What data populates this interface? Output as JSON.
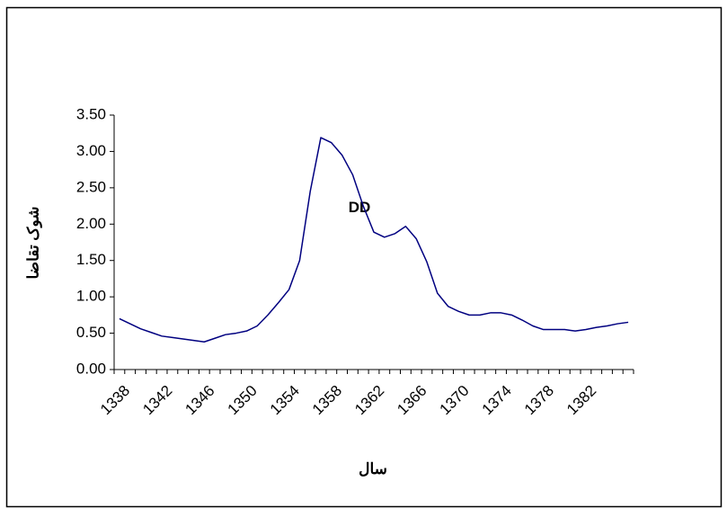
{
  "chart_data": {
    "type": "line",
    "y_label": "شوک تقاضا",
    "x_label": "سال",
    "annotation": "DD",
    "categories": [
      "1338",
      null,
      null,
      null,
      "1342",
      null,
      null,
      null,
      "1346",
      null,
      null,
      null,
      "1350",
      null,
      null,
      null,
      "1354",
      null,
      null,
      null,
      "1358",
      null,
      null,
      null,
      "1362",
      null,
      null,
      null,
      "1366",
      null,
      null,
      null,
      "1370",
      null,
      null,
      null,
      "1374",
      null,
      null,
      null,
      "1378",
      null,
      null,
      null,
      "1382",
      null,
      null,
      null,
      null
    ],
    "series": [
      {
        "color": "#000080",
        "values": [
          0.7,
          0.63,
          0.56,
          0.51,
          0.46,
          0.44,
          0.42,
          0.4,
          0.38,
          0.43,
          0.48,
          0.5,
          0.53,
          0.6,
          0.75,
          0.92,
          1.1,
          1.5,
          2.45,
          3.19,
          3.12,
          2.95,
          2.68,
          2.25,
          1.89,
          1.82,
          1.87,
          1.97,
          1.8,
          1.48,
          1.05,
          0.87,
          0.8,
          0.75,
          0.75,
          0.78,
          0.78,
          0.75,
          0.68,
          0.6,
          0.55,
          0.55,
          0.55,
          0.53,
          0.55,
          0.58,
          0.6,
          0.63,
          0.65
        ]
      }
    ],
    "ylim": [
      0,
      3.5
    ],
    "yticks": [
      {
        "value": 0,
        "label": "0.00"
      },
      {
        "value": 0.5,
        "label": "0.50"
      },
      {
        "value": 1,
        "label": "1.00"
      },
      {
        "value": 1.5,
        "label": "1.50"
      },
      {
        "value": 2,
        "label": "2.00"
      },
      {
        "value": 2.5,
        "label": "2.50"
      },
      {
        "value": 3,
        "label": "3.00"
      },
      {
        "value": 3.5,
        "label": "3.50"
      }
    ],
    "grid": false
  }
}
